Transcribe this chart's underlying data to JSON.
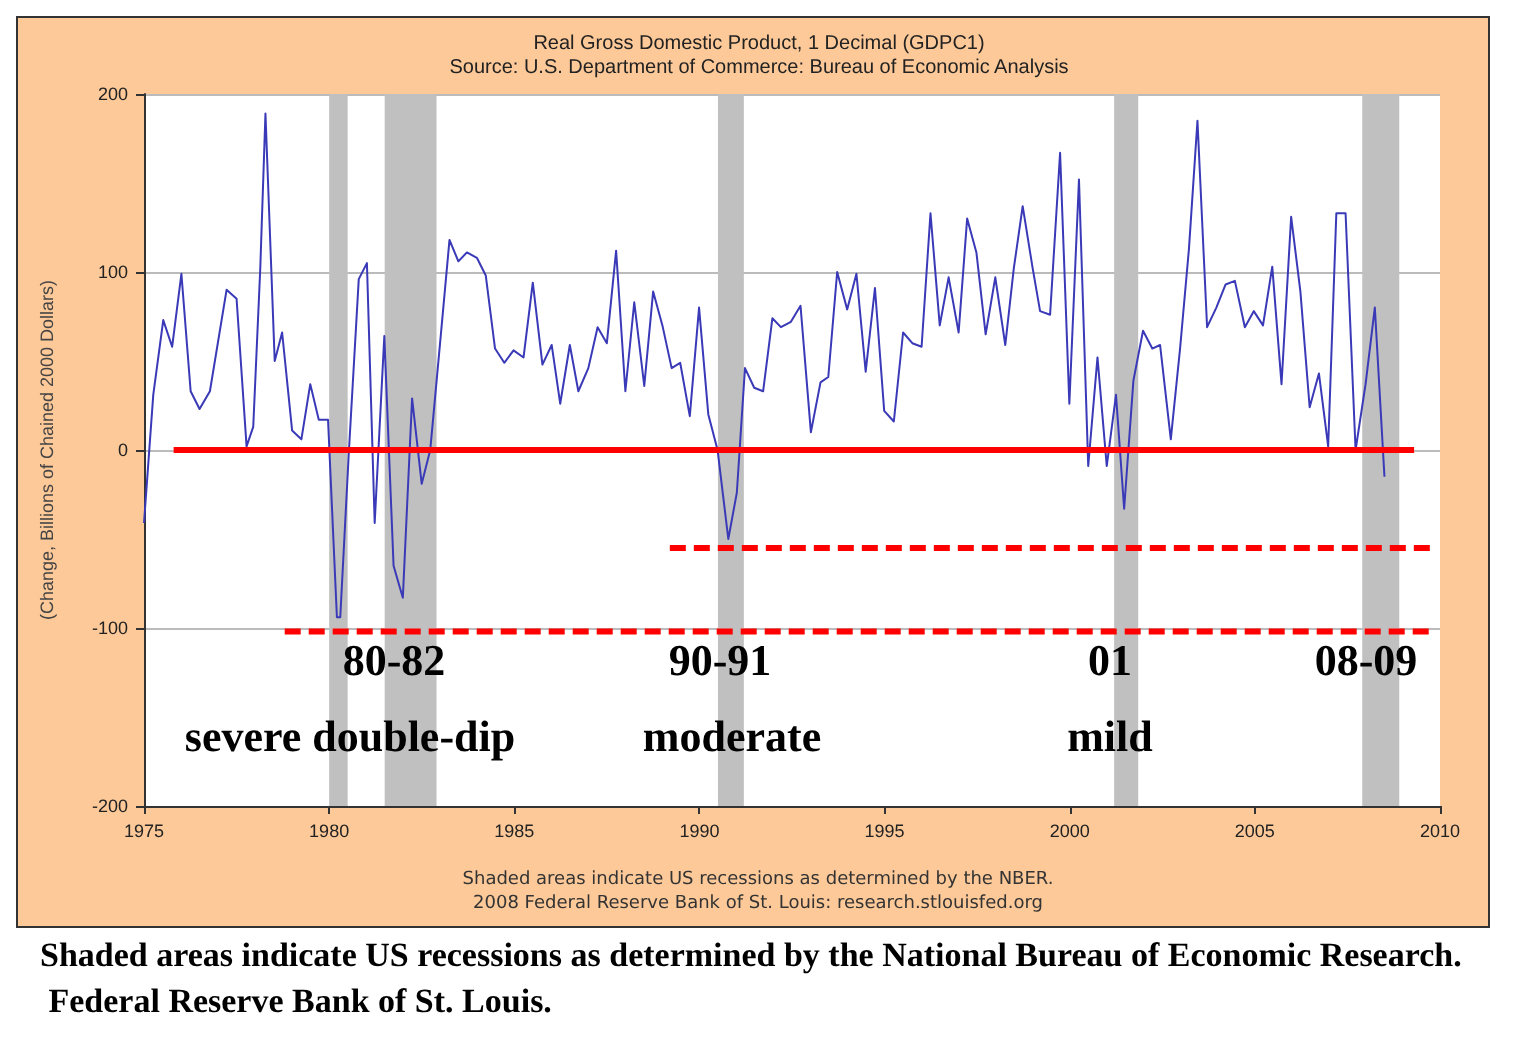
{
  "chart_data": {
    "type": "line",
    "title": "Real Gross Domestic Product, 1 Decimal (GDPC1)",
    "subtitle": "Source: U.S. Department of Commerce: Bureau of Economic Analysis",
    "ylabel": "(Change, Billions of Chained 2000 Dollars)",
    "xlim": [
      1975,
      2010
    ],
    "xticks": [
      1975,
      1980,
      1985,
      1990,
      1995,
      2000,
      2005,
      2010
    ],
    "ylim": [
      -200,
      200
    ],
    "yticks": [
      -200,
      -100,
      0,
      100,
      200
    ],
    "grid": "y",
    "series": [
      {
        "color": "#3a3ab8",
        "x": [
          1975.0,
          1975.25,
          1975.52,
          1975.76,
          1976.01,
          1976.26,
          1976.5,
          1976.78,
          1977.23,
          1977.5,
          1977.77,
          1977.95,
          1978.14,
          1978.28,
          1978.53,
          1978.73,
          1979.0,
          1979.25,
          1979.49,
          1979.72,
          1979.97,
          1980.21,
          1980.3,
          1980.53,
          1980.8,
          1981.02,
          1981.23,
          1981.49,
          1981.74,
          1981.99,
          1982.24,
          1982.5,
          1982.73,
          1983.0,
          1983.25,
          1983.49,
          1983.72,
          1983.99,
          1984.23,
          1984.48,
          1984.73,
          1984.98,
          1985.25,
          1985.5,
          1985.76,
          1986.01,
          1986.24,
          1986.5,
          1986.73,
          1987.0,
          1987.25,
          1987.5,
          1987.75,
          1988.0,
          1988.24,
          1988.51,
          1988.75,
          1989.0,
          1989.25,
          1989.48,
          1989.74,
          1989.99,
          1990.24,
          1990.49,
          1990.78,
          1991.01,
          1991.23,
          1991.48,
          1991.72,
          1991.97,
          1992.2,
          1992.47,
          1992.73,
          1993.01,
          1993.27,
          1993.48,
          1993.72,
          1993.99,
          1994.24,
          1994.49,
          1994.74,
          1994.99,
          1995.25,
          1995.5,
          1995.75,
          1996.0,
          1996.24,
          1996.49,
          1996.73,
          1997.0,
          1997.23,
          1997.48,
          1997.73,
          1997.99,
          1998.26,
          1998.49,
          1998.73,
          1999.0,
          1999.2,
          1999.47,
          1999.74,
          1999.99,
          2000.25,
          2000.5,
          2000.75,
          2001.0,
          2001.25,
          2001.47,
          2001.72,
          2001.98,
          2002.23,
          2002.44,
          2002.73,
          2002.98,
          2003.22,
          2003.45,
          2003.71,
          2003.96,
          2004.21,
          2004.46,
          2004.73,
          2004.97,
          2005.22,
          2005.47,
          2005.72,
          2005.98,
          2006.23,
          2006.48,
          2006.73,
          2006.98,
          2007.2,
          2007.45,
          2007.72,
          2007.99,
          2008.24,
          2008.5
        ],
        "values": [
          -41,
          31,
          73,
          58,
          99,
          33,
          23,
          33,
          90,
          85,
          2,
          13,
          102,
          189,
          50,
          66,
          11,
          6,
          37,
          17,
          17,
          -94,
          -94,
          -2,
          96,
          105,
          -41,
          64,
          -65,
          -83,
          29,
          -19,
          0,
          61,
          118,
          106,
          111,
          108,
          98,
          57,
          49,
          56,
          52,
          94,
          48,
          59,
          26,
          59,
          33,
          46,
          69,
          60,
          112,
          33,
          83,
          36,
          89,
          70,
          46,
          49,
          19,
          80,
          20,
          0,
          -50,
          -24,
          46,
          35,
          33,
          74,
          69,
          72,
          81,
          10,
          38,
          41,
          100,
          79,
          99,
          44,
          91,
          22,
          16,
          66,
          60,
          58,
          133,
          70,
          97,
          66,
          130,
          111,
          65,
          97,
          59,
          102,
          137,
          102,
          78,
          76,
          167,
          26,
          152,
          -9,
          52,
          -9,
          31,
          -33,
          39,
          67,
          57,
          59,
          6,
          57,
          113,
          185,
          69,
          80,
          93,
          95,
          69,
          78,
          70,
          103,
          37,
          131,
          89,
          24,
          43,
          2,
          133,
          133,
          0,
          37,
          80,
          -15
        ]
      },
      {
        "color": "#ff0000",
        "line_style": "solid",
        "x": [
          1975.8,
          2009.3
        ],
        "values": [
          0,
          0
        ]
      },
      {
        "color": "#ff0000",
        "line_style": "dashed",
        "x": [
          1989.2,
          2009.9
        ],
        "values": [
          -55,
          -55
        ]
      },
      {
        "color": "#ff0000",
        "line_style": "dashed",
        "x": [
          1978.8,
          2009.9
        ],
        "values": [
          -102,
          -102
        ]
      }
    ],
    "bands": [
      {
        "axis": "x",
        "from": 1980.0,
        "to": 1980.5,
        "color": "#c0c0c0"
      },
      {
        "axis": "x",
        "from": 1981.5,
        "to": 1982.9,
        "color": "#c0c0c0"
      },
      {
        "axis": "x",
        "from": 1990.5,
        "to": 1991.2,
        "color": "#c0c0c0"
      },
      {
        "axis": "x",
        "from": 2001.2,
        "to": 2001.85,
        "color": "#c0c0c0"
      },
      {
        "axis": "x",
        "from": 2007.9,
        "to": 2008.9,
        "color": "#c0c0c0"
      }
    ],
    "annotations": [
      "80-82",
      "severe double-dip",
      "90-91",
      "moderate",
      "01",
      "mild",
      "08-09",
      "Shaded areas indicate US recessions as determined by the NBER.",
      "2008 Federal Reserve Bank of St. Louis: research.stlouisfed.org",
      "Shaded areas indicate US recessions as determined by the National Bureau of Economic Research.  Federal Reserve Bank of St. Louis."
    ]
  }
}
